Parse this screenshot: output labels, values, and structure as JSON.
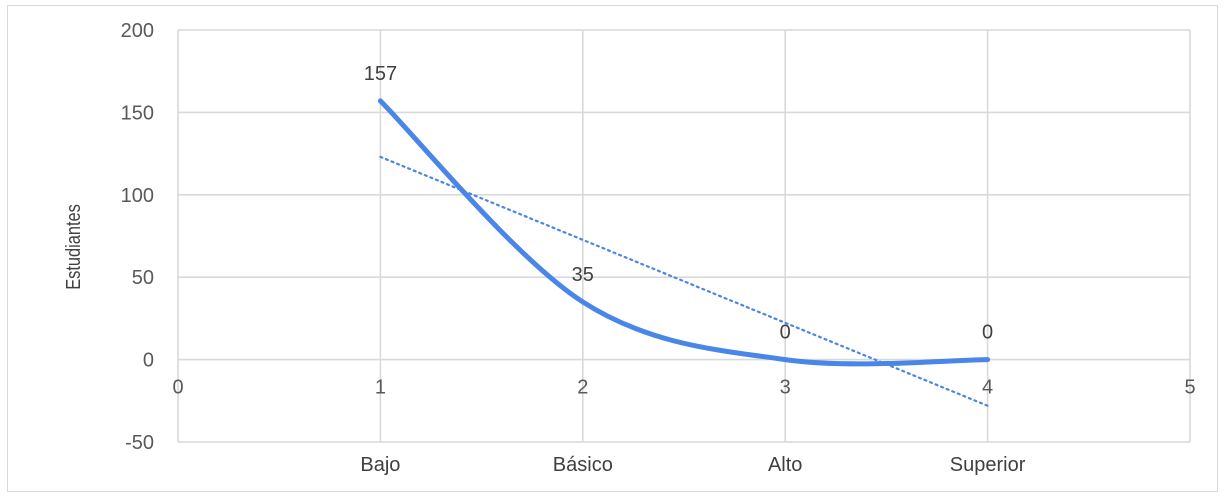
{
  "chart_data": {
    "type": "scatter",
    "ylabel": "Estudiantes",
    "xlim": [
      0,
      5
    ],
    "ylim": [
      -50,
      200
    ],
    "x_ticks": [
      0,
      1,
      2,
      3,
      4,
      5
    ],
    "y_ticks": [
      -50,
      0,
      50,
      100,
      150,
      200
    ],
    "grid": true,
    "categories": [
      "Bajo",
      "Básico",
      "Alto",
      "Superior"
    ],
    "series": [
      {
        "x": [
          1,
          2,
          3,
          4
        ],
        "y": [
          157,
          35,
          0,
          0
        ],
        "data_labels": [
          "157",
          "35",
          "0",
          "0"
        ],
        "line": "smooth",
        "color": "#4a86e8"
      }
    ],
    "trendline": {
      "kind": "linear",
      "style": "dotted",
      "color": "#4a86e8",
      "start": [
        1,
        123
      ],
      "end": [
        4,
        -28
      ]
    }
  }
}
